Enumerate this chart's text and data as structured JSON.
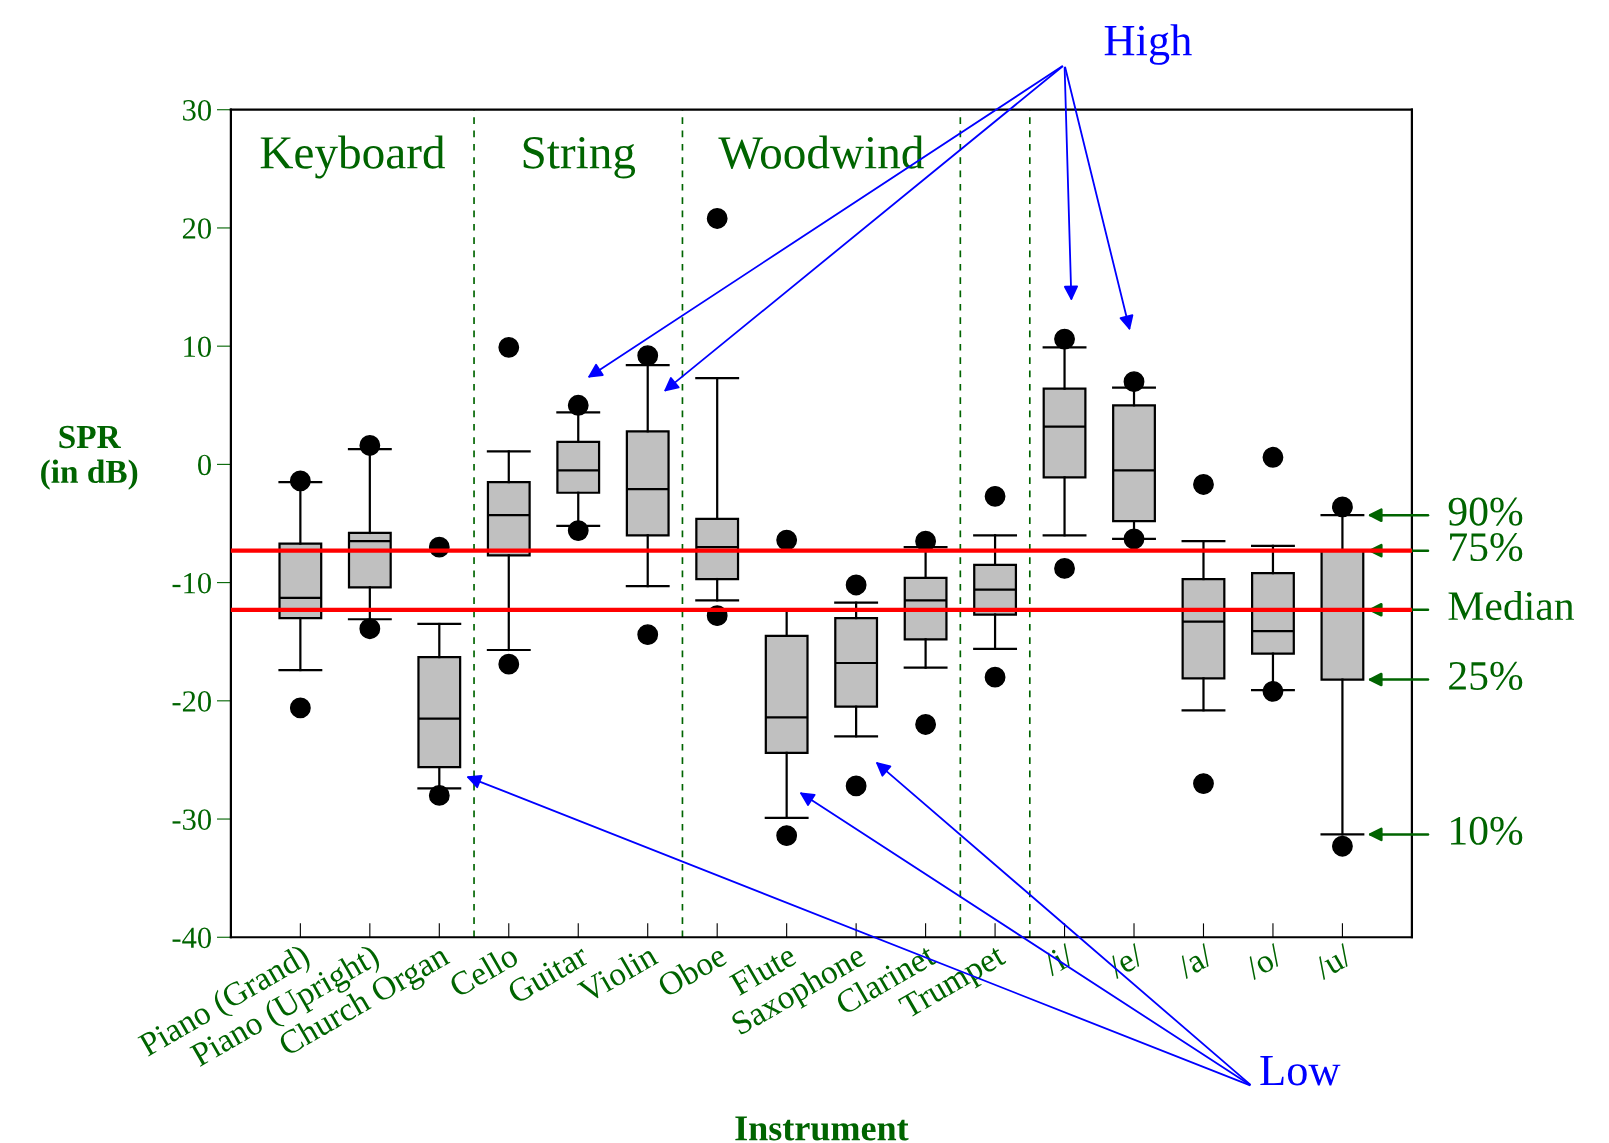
{
  "chart_data": {
    "type": "box",
    "xlabel": "Instrument",
    "ylabel": "SPR\n(in dB)",
    "categories": [
      "Piano (Grand)",
      "Piano (Upright)",
      "Church Organ",
      "Cello",
      "Guitar",
      "Violin",
      "Oboe",
      "Flute",
      "Saxophone",
      "Clarinet",
      "Trumpet",
      "/i/",
      "/e/",
      "/a/",
      "/o/",
      "/u/"
    ],
    "ylim": [
      -40,
      30
    ],
    "yticks": [
      -40,
      -30,
      -20,
      -10,
      0,
      10,
      20,
      30
    ],
    "grid": false,
    "legend": false,
    "series": [
      {
        "color": "#c0c0c0",
        "boxes": [
          {
            "low": -17.4,
            "q1": -13.0,
            "median": -11.3,
            "q3": -6.7,
            "high": -1.5,
            "outliers": [
              -1.4,
              -20.6
            ]
          },
          {
            "low": -13.1,
            "q1": -10.4,
            "median": -6.5,
            "q3": -5.8,
            "high": 1.3,
            "outliers": [
              1.6,
              -13.9
            ]
          },
          {
            "low": -27.4,
            "q1": -25.6,
            "median": -21.5,
            "q3": -16.3,
            "high": -13.5,
            "outliers": [
              -7.0,
              -28.0
            ]
          },
          {
            "low": -15.7,
            "q1": -7.7,
            "median": -4.3,
            "q3": -1.5,
            "high": 1.1,
            "outliers": [
              9.9,
              -16.9
            ]
          },
          {
            "low": -5.2,
            "q1": -2.4,
            "median": -0.5,
            "q3": 1.9,
            "high": 4.4,
            "outliers": [
              5.0,
              -5.6
            ]
          },
          {
            "low": -10.3,
            "q1": -6.0,
            "median": -2.1,
            "q3": 2.8,
            "high": 8.4,
            "outliers": [
              9.2,
              -14.4
            ]
          },
          {
            "low": -11.5,
            "q1": -9.7,
            "median": -7.0,
            "q3": -4.6,
            "high": 7.3,
            "outliers": [
              20.8,
              -12.8
            ]
          },
          {
            "low": -29.9,
            "q1": -24.4,
            "median": -21.4,
            "q3": -14.5,
            "high": -12.3,
            "outliers": [
              -6.4,
              -31.4
            ]
          },
          {
            "low": -23.0,
            "q1": -20.5,
            "median": -16.8,
            "q3": -13.0,
            "high": -11.7,
            "outliers": [
              -10.2,
              -27.2
            ]
          },
          {
            "low": -17.2,
            "q1": -14.8,
            "median": -11.5,
            "q3": -9.6,
            "high": -7.0,
            "outliers": [
              -6.5,
              -22.0
            ]
          },
          {
            "low": -15.6,
            "q1": -12.7,
            "median": -10.6,
            "q3": -8.5,
            "high": -6.0,
            "outliers": [
              -2.7,
              -18.0
            ]
          },
          {
            "low": -6.0,
            "q1": -1.1,
            "median": 3.2,
            "q3": 6.4,
            "high": 9.9,
            "outliers": [
              10.6,
              -8.8
            ]
          },
          {
            "low": -6.3,
            "q1": -4.8,
            "median": -0.5,
            "q3": 5.0,
            "high": 6.5,
            "outliers": [
              7.0,
              -6.3
            ]
          },
          {
            "low": -20.8,
            "q1": -18.1,
            "median": -13.3,
            "q3": -9.7,
            "high": -6.5,
            "outliers": [
              -1.7,
              -27.0
            ]
          },
          {
            "low": -19.1,
            "q1": -16.0,
            "median": -14.1,
            "q3": -9.2,
            "high": -6.9,
            "outliers": [
              0.6,
              -19.2
            ]
          },
          {
            "low": -31.3,
            "q1": -18.2,
            "median": -7.3,
            "q3": -7.3,
            "high": -4.3,
            "outliers": [
              -3.6,
              -32.3
            ]
          }
        ]
      }
    ],
    "ref_lines": [
      {
        "axis": "y",
        "value": -7.3,
        "color": "#ff0000",
        "line_style": "solid"
      },
      {
        "axis": "y",
        "value": -12.3,
        "color": "#ff0000",
        "line_style": "solid"
      }
    ],
    "annotations": [
      "Keyboard",
      "String",
      "Woodwind",
      "High",
      "Low",
      {
        "text": "90%",
        "x": "/u/",
        "y": -4.3
      },
      {
        "text": "75%",
        "x": "/u/",
        "y": -7.3
      },
      {
        "text": "Median",
        "x": "/u/",
        "y": -12.3
      },
      {
        "text": "25%",
        "x": "/u/",
        "y": -18.2
      },
      {
        "text": "10%",
        "x": "/u/",
        "y": -31.3
      }
    ]
  }
}
